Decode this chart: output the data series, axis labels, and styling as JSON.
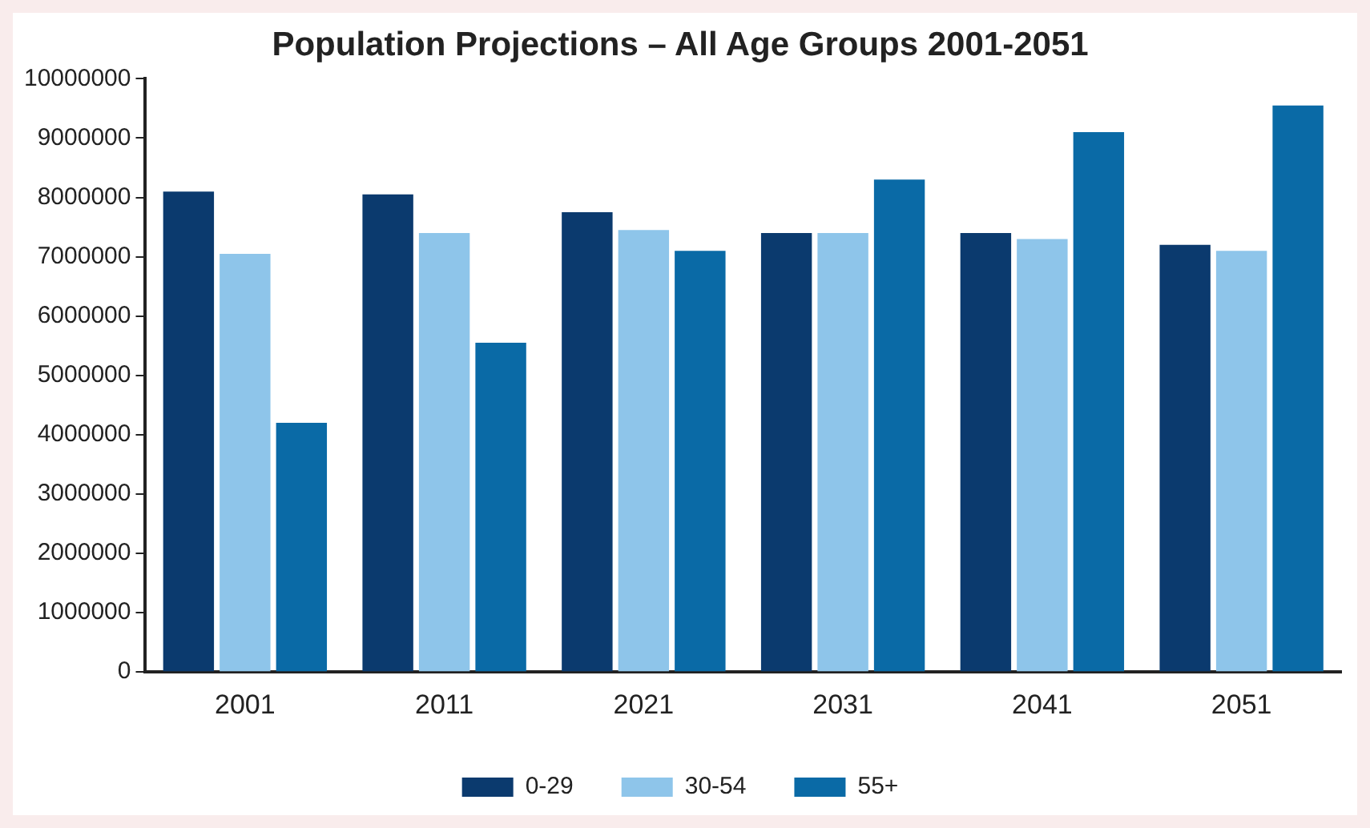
{
  "chart_data": {
    "type": "bar",
    "title": "Population Projections – All Age Groups 2001-2051",
    "categories": [
      "2001",
      "2011",
      "2021",
      "2031",
      "2041",
      "2051"
    ],
    "series": [
      {
        "name": "0-29",
        "color": "#0b3a6e",
        "values": [
          8100000,
          8050000,
          7750000,
          7400000,
          7400000,
          7200000
        ]
      },
      {
        "name": "30-54",
        "color": "#8ec5ea",
        "values": [
          7050000,
          7400000,
          7450000,
          7400000,
          7300000,
          7100000
        ]
      },
      {
        "name": "55+",
        "color": "#0a6aa6",
        "values": [
          4200000,
          5550000,
          7100000,
          8300000,
          9100000,
          9550000
        ]
      }
    ],
    "ylim": [
      0,
      10000000
    ],
    "yticks": [
      0,
      1000000,
      2000000,
      3000000,
      4000000,
      5000000,
      6000000,
      7000000,
      8000000,
      9000000,
      10000000
    ],
    "grid": false,
    "legend": "bottom"
  }
}
